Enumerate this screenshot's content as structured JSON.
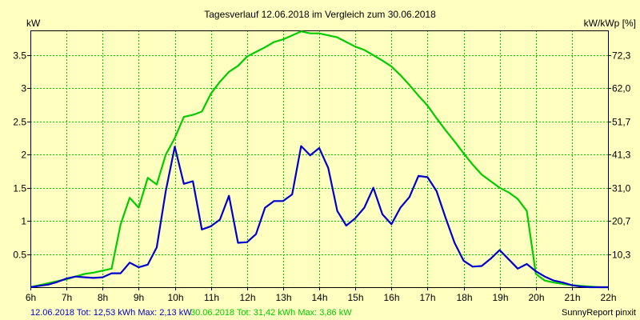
{
  "chart_data": {
    "type": "line",
    "title": "Tagesverlauf 12.06.2018 im Vergleich zum 30.06.2018",
    "ylabel_left": "kW",
    "ylabel_right": "kW/kWp [%]",
    "xlim": [
      6,
      22
    ],
    "ylim": [
      0,
      3.875
    ],
    "grid": true,
    "x_ticks": [
      {
        "value": 6,
        "label": "6h"
      },
      {
        "value": 7,
        "label": "7h"
      },
      {
        "value": 8,
        "label": "8h"
      },
      {
        "value": 9,
        "label": "9h"
      },
      {
        "value": 10,
        "label": "10h"
      },
      {
        "value": 11,
        "label": "11h"
      },
      {
        "value": 12,
        "label": "12h"
      },
      {
        "value": 13,
        "label": "13h"
      },
      {
        "value": 14,
        "label": "14h"
      },
      {
        "value": 15,
        "label": "15h"
      },
      {
        "value": 16,
        "label": "16h"
      },
      {
        "value": 17,
        "label": "17h"
      },
      {
        "value": 18,
        "label": "18h"
      },
      {
        "value": 19,
        "label": "19h"
      },
      {
        "value": 20,
        "label": "20h"
      },
      {
        "value": 21,
        "label": "21h"
      },
      {
        "value": 22,
        "label": "22h"
      }
    ],
    "y_ticks_left": [
      {
        "value": 0.5,
        "label": "0.5"
      },
      {
        "value": 1.0,
        "label": "1"
      },
      {
        "value": 1.5,
        "label": "1.5"
      },
      {
        "value": 2.0,
        "label": "2"
      },
      {
        "value": 2.5,
        "label": "2.5"
      },
      {
        "value": 3.0,
        "label": "3"
      },
      {
        "value": 3.5,
        "label": "3.5"
      }
    ],
    "y_ticks_right": [
      {
        "value": 0.5,
        "label": "10,3"
      },
      {
        "value": 1.0,
        "label": "20,7"
      },
      {
        "value": 1.5,
        "label": "31,0"
      },
      {
        "value": 2.0,
        "label": "41,3"
      },
      {
        "value": 2.5,
        "label": "51,7"
      },
      {
        "value": 3.0,
        "label": "62,0"
      },
      {
        "value": 3.5,
        "label": "72,3"
      }
    ],
    "series": [
      {
        "name": "12.06.2018",
        "color": "#0000CC",
        "legend": "12.06.2018 Tot: 12,53 kWh Max: 2,13 kW",
        "x": [
          6.0,
          6.25,
          6.5,
          6.75,
          7.0,
          7.25,
          7.5,
          7.75,
          8.0,
          8.25,
          8.5,
          8.75,
          9.0,
          9.25,
          9.5,
          9.75,
          10.0,
          10.25,
          10.5,
          10.75,
          11.0,
          11.25,
          11.5,
          11.75,
          12.0,
          12.25,
          12.5,
          12.75,
          13.0,
          13.25,
          13.5,
          13.75,
          14.0,
          14.25,
          14.5,
          14.75,
          15.0,
          15.25,
          15.5,
          15.75,
          16.0,
          16.25,
          16.5,
          16.75,
          17.0,
          17.25,
          17.5,
          17.75,
          18.0,
          18.25,
          18.5,
          18.75,
          19.0,
          19.25,
          19.5,
          19.75,
          20.0,
          20.25,
          20.5,
          20.75,
          21.0,
          21.25,
          21.5,
          21.75,
          22.0
        ],
        "y": [
          0.0,
          0.02,
          0.04,
          0.08,
          0.13,
          0.16,
          0.15,
          0.14,
          0.15,
          0.21,
          0.21,
          0.37,
          0.3,
          0.34,
          0.6,
          1.45,
          2.12,
          1.56,
          1.6,
          0.87,
          0.92,
          1.02,
          1.38,
          0.67,
          0.68,
          0.8,
          1.2,
          1.3,
          1.3,
          1.4,
          2.13,
          1.99,
          2.1,
          1.8,
          1.15,
          0.93,
          1.04,
          1.2,
          1.5,
          1.1,
          0.95,
          1.2,
          1.36,
          1.68,
          1.66,
          1.45,
          1.05,
          0.67,
          0.4,
          0.31,
          0.32,
          0.43,
          0.56,
          0.42,
          0.28,
          0.35,
          0.24,
          0.16,
          0.1,
          0.07,
          0.03,
          0.01,
          0.0,
          0.0,
          0.0
        ]
      },
      {
        "name": "30.06.2018",
        "color": "#00CC00",
        "legend": "30.06.2018 Tot: 31,42 kWh Max: 3,86 kW",
        "x": [
          6.0,
          6.25,
          6.5,
          6.75,
          7.0,
          7.25,
          7.5,
          7.75,
          8.0,
          8.25,
          8.5,
          8.75,
          9.0,
          9.25,
          9.5,
          9.75,
          10.0,
          10.25,
          10.5,
          10.75,
          11.0,
          11.25,
          11.5,
          11.75,
          12.0,
          12.25,
          12.5,
          12.75,
          13.0,
          13.25,
          13.5,
          13.75,
          14.0,
          14.25,
          14.5,
          14.75,
          15.0,
          15.25,
          15.5,
          15.75,
          16.0,
          16.25,
          16.5,
          16.75,
          17.0,
          17.25,
          17.5,
          17.75,
          18.0,
          18.25,
          18.5,
          18.75,
          19.0,
          19.25,
          19.5,
          19.75,
          20.0,
          20.25,
          20.5,
          20.75,
          21.0,
          21.25,
          21.5,
          21.75,
          22.0
        ],
        "y": [
          0.0,
          0.03,
          0.06,
          0.09,
          0.12,
          0.16,
          0.2,
          0.22,
          0.25,
          0.28,
          0.95,
          1.35,
          1.2,
          1.65,
          1.55,
          2.0,
          2.25,
          2.57,
          2.6,
          2.65,
          2.92,
          3.1,
          3.25,
          3.34,
          3.48,
          3.55,
          3.62,
          3.7,
          3.74,
          3.8,
          3.86,
          3.83,
          3.83,
          3.8,
          3.77,
          3.7,
          3.63,
          3.58,
          3.5,
          3.42,
          3.33,
          3.2,
          3.05,
          2.89,
          2.74,
          2.55,
          2.37,
          2.2,
          2.02,
          1.85,
          1.7,
          1.6,
          1.5,
          1.43,
          1.33,
          1.15,
          0.2,
          0.1,
          0.07,
          0.05,
          0.03,
          0.02,
          0.01,
          0.0,
          0.0
        ]
      }
    ],
    "footer_right": "SunnyReport pinxit"
  }
}
